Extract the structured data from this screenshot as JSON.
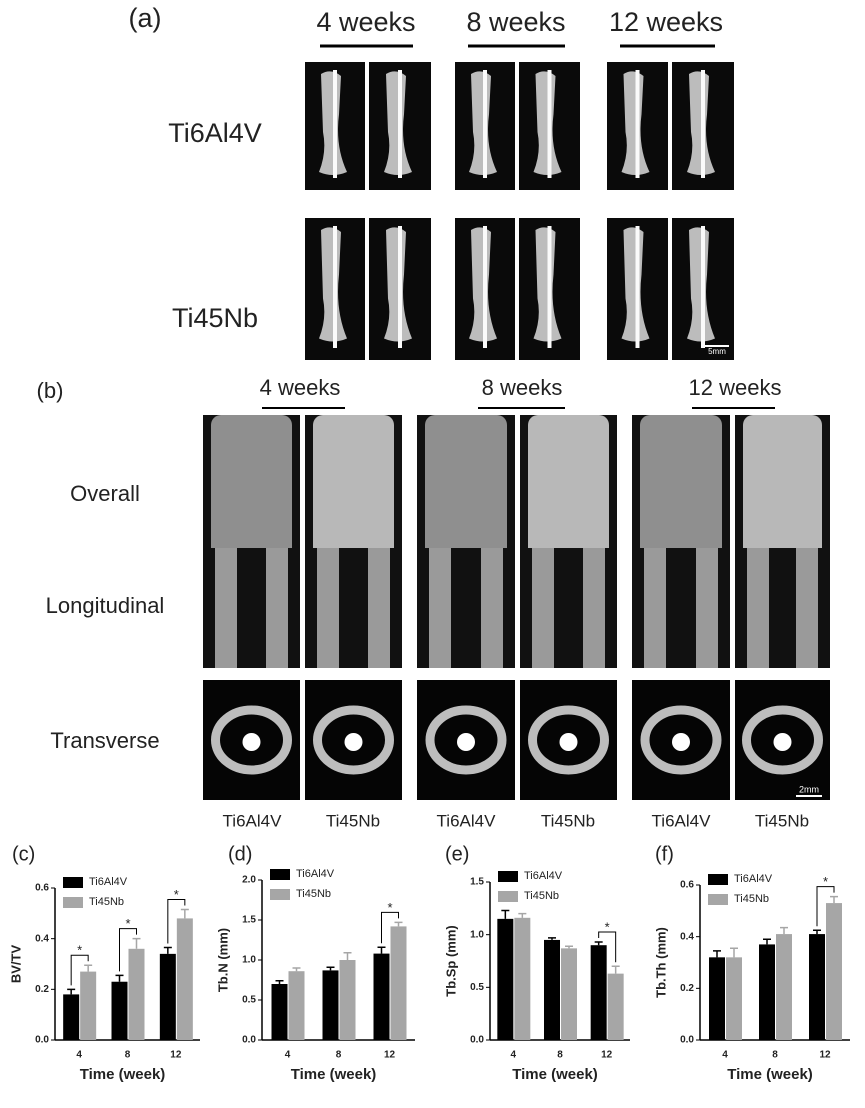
{
  "panel_a": {
    "label": "(a)",
    "columns": [
      "4 weeks",
      "8 weeks",
      "12 weeks"
    ],
    "rows": [
      "Ti6Al4V",
      "Ti45Nb"
    ],
    "scale_bar": "5mm"
  },
  "panel_b": {
    "label": "(b)",
    "columns": [
      "4 weeks",
      "8 weeks",
      "12 weeks"
    ],
    "rows": [
      "Overall",
      "Longitudinal",
      "Transverse"
    ],
    "groups": [
      "Ti6Al4V",
      "Ti45Nb",
      "Ti6Al4V",
      "Ti45Nb",
      "Ti6Al4V",
      "Ti45Nb"
    ],
    "scale_bar": "2mm"
  },
  "chart_data": [
    {
      "type": "bar",
      "panel": "(c)",
      "ylabel": "BV/TV",
      "xlabel": "Time (week)",
      "categories": [
        "4",
        "8",
        "12"
      ],
      "series": [
        {
          "name": "Ti6Al4V",
          "color": "#000000",
          "values": [
            0.18,
            0.23,
            0.34
          ],
          "errors": [
            0.02,
            0.025,
            0.025
          ]
        },
        {
          "name": "Ti45Nb",
          "color": "#a6a6a6",
          "values": [
            0.27,
            0.36,
            0.48
          ],
          "errors": [
            0.025,
            0.04,
            0.035
          ]
        }
      ],
      "ylim": [
        0,
        0.6
      ],
      "yticks": [
        {
          "value": 0,
          "label": "0.0"
        },
        0.2,
        0.4,
        0.6
      ],
      "annotations": [
        {
          "text": "*",
          "category": "4"
        },
        {
          "text": "*",
          "category": "8"
        },
        {
          "text": "*",
          "category": "12"
        }
      ]
    },
    {
      "type": "bar",
      "panel": "(d)",
      "ylabel": "Tb.N (mm)",
      "xlabel": "Time (week)",
      "categories": [
        "4",
        "8",
        "12"
      ],
      "series": [
        {
          "name": "Ti6Al4V",
          "color": "#000000",
          "values": [
            0.7,
            0.87,
            1.08
          ],
          "errors": [
            0.04,
            0.04,
            0.08
          ]
        },
        {
          "name": "Ti45Nb",
          "color": "#a6a6a6",
          "values": [
            0.86,
            1.0,
            1.42
          ],
          "errors": [
            0.04,
            0.09,
            0.05
          ]
        }
      ],
      "ylim": [
        0,
        2.0
      ],
      "yticks": [
        {
          "value": 0,
          "label": "0.0"
        },
        0.5,
        {
          "value": 1,
          "label": "1.0"
        },
        1.5,
        {
          "value": 2,
          "label": "2.0"
        }
      ],
      "annotations": [
        {
          "text": "*",
          "category": "12"
        }
      ]
    },
    {
      "type": "bar",
      "panel": "(e)",
      "ylabel": "Tb.Sp (mm)",
      "xlabel": "Time (week)",
      "categories": [
        "4",
        "8",
        "12"
      ],
      "series": [
        {
          "name": "Ti6Al4V",
          "color": "#000000",
          "values": [
            1.15,
            0.95,
            0.9
          ],
          "errors": [
            0.08,
            0.02,
            0.03
          ]
        },
        {
          "name": "Ti45Nb",
          "color": "#a6a6a6",
          "values": [
            1.16,
            0.87,
            0.63
          ],
          "errors": [
            0.04,
            0.02,
            0.07
          ]
        }
      ],
      "ylim": [
        0,
        1.5
      ],
      "yticks": [
        {
          "value": 0,
          "label": "0.0"
        },
        0.5,
        {
          "value": 1,
          "label": "1.0"
        },
        1.5
      ],
      "annotations": [
        {
          "text": "*",
          "category": "12"
        }
      ]
    },
    {
      "type": "bar",
      "panel": "(f)",
      "ylabel": "Tb.Th (mm)",
      "xlabel": "Time (week)",
      "categories": [
        "4",
        "8",
        "12"
      ],
      "series": [
        {
          "name": "Ti6Al4V",
          "color": "#000000",
          "values": [
            0.32,
            0.37,
            0.41
          ],
          "errors": [
            0.025,
            0.02,
            0.015
          ]
        },
        {
          "name": "Ti45Nb",
          "color": "#a6a6a6",
          "values": [
            0.32,
            0.41,
            0.53
          ],
          "errors": [
            0.035,
            0.025,
            0.025
          ]
        }
      ],
      "ylim": [
        0,
        0.6
      ],
      "yticks": [
        {
          "value": 0,
          "label": "0.0"
        },
        0.2,
        0.4,
        0.6
      ],
      "annotations": [
        {
          "text": "*",
          "category": "12"
        }
      ]
    }
  ]
}
